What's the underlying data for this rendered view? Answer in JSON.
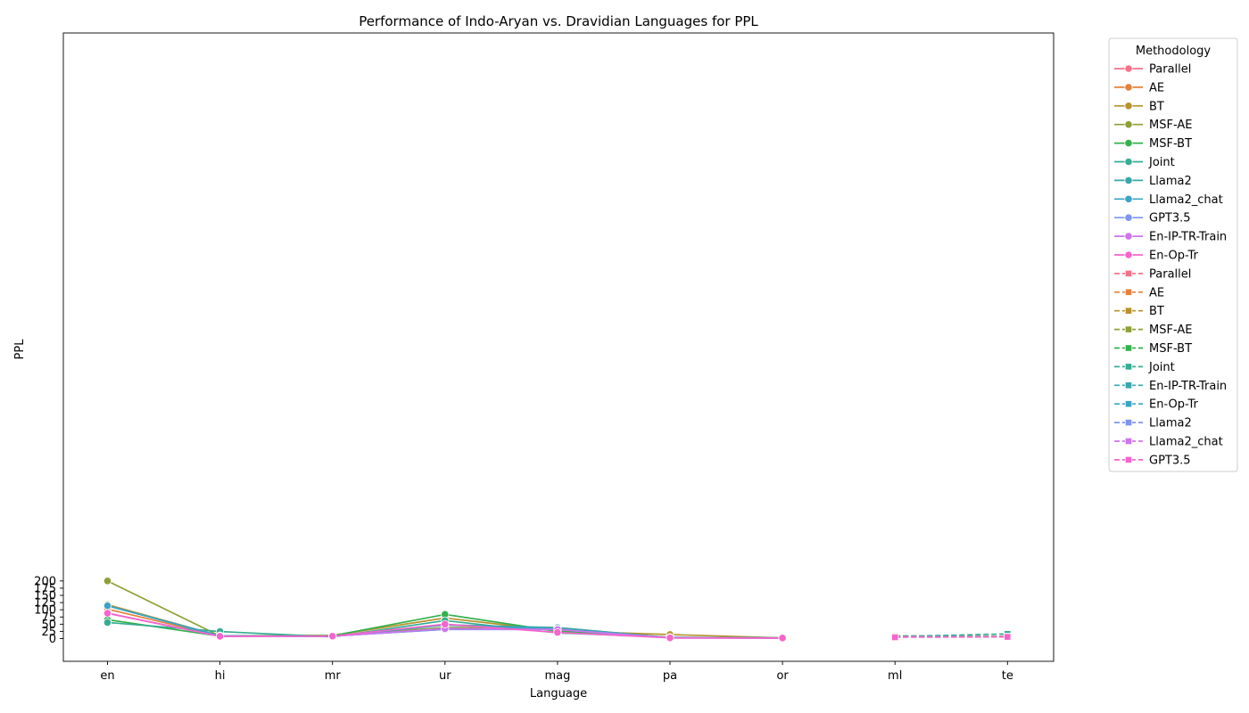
{
  "chart_data": {
    "type": "line",
    "title": "Performance of Indo-Aryan vs. Dravidian Languages for PPL",
    "xlabel": "Language",
    "ylabel": "PPL",
    "categories": [
      "en",
      "hi",
      "mr",
      "ur",
      "mag",
      "pa",
      "or",
      "ml",
      "te"
    ],
    "ylim": [
      -8,
      210
    ],
    "yticks": [
      0,
      25,
      50,
      75,
      100,
      125,
      150,
      175,
      200
    ],
    "grid": false,
    "legend": {
      "title": "Methodology",
      "placement": "outside-right"
    },
    "series": [
      {
        "name": "Parallel",
        "group": "Indo-Aryan",
        "color": "#f77189",
        "values": [
          88,
          8,
          9,
          32,
          32,
          3,
          2.2,
          null,
          null
        ]
      },
      {
        "name": "AE",
        "group": "Indo-Aryan",
        "color": "#e5823b",
        "values": [
          102,
          9,
          9,
          32.5,
          37,
          3,
          2.2,
          null,
          null
        ]
      },
      {
        "name": "BT",
        "group": "Indo-Aryan",
        "color": "#b8922c",
        "values": [
          118,
          9.5,
          11,
          71.5,
          26.5,
          14,
          2.5,
          null,
          null
        ]
      },
      {
        "name": "MSF-AE",
        "group": "Indo-Aryan",
        "color": "#8da036",
        "values": [
          200,
          9,
          10.5,
          38.5,
          38,
          3,
          2.2,
          null,
          null
        ]
      },
      {
        "name": "MSF-BT",
        "group": "Indo-Aryan",
        "color": "#33b14d",
        "values": [
          65.5,
          8.5,
          10,
          84,
          25,
          3,
          2.2,
          null,
          null
        ]
      },
      {
        "name": "Joint",
        "group": "Indo-Aryan",
        "color": "#36ac92",
        "values": [
          56,
          24.5,
          6,
          62.5,
          19.5,
          4.5,
          2.5,
          null,
          null
        ]
      },
      {
        "name": "Llama2",
        "group": "Indo-Aryan",
        "color": "#38a7ab",
        "values": [
          114,
          10,
          7,
          48,
          38,
          3,
          2.2,
          null,
          null
        ]
      },
      {
        "name": "Llama2_chat",
        "group": "Indo-Aryan",
        "color": "#3ba3c4",
        "values": [
          114,
          9.5,
          7.5,
          47,
          33.5,
          3,
          2.2,
          null,
          null
        ]
      },
      {
        "name": "GPT3.5",
        "group": "Indo-Aryan",
        "color": "#7e94f2",
        "values": [
          88,
          8,
          9,
          31.5,
          31.5,
          2.5,
          2,
          null,
          null
        ]
      },
      {
        "name": "En-IP-TR-Train",
        "group": "Indo-Aryan",
        "color": "#cd74f0",
        "values": [
          88,
          7.5,
          8.5,
          34.5,
          31.5,
          2.5,
          2,
          null,
          null
        ]
      },
      {
        "name": "En-Op-Tr",
        "group": "Indo-Aryan",
        "color": "#f565cc",
        "values": [
          88,
          8,
          8.5,
          50,
          21.5,
          2.5,
          2,
          null,
          null
        ]
      },
      {
        "name": "Parallel",
        "group": "Dravidian",
        "color": "#f77189",
        "values": [
          null,
          null,
          null,
          null,
          null,
          null,
          null,
          5.5,
          6
        ]
      },
      {
        "name": "AE",
        "group": "Dravidian",
        "color": "#e5823b",
        "values": [
          null,
          null,
          null,
          null,
          null,
          null,
          null,
          5.5,
          6.5
        ]
      },
      {
        "name": "BT",
        "group": "Dravidian",
        "color": "#b8922c",
        "values": [
          null,
          null,
          null,
          null,
          null,
          null,
          null,
          5.5,
          8
        ]
      },
      {
        "name": "MSF-AE",
        "group": "Dravidian",
        "color": "#8da036",
        "values": [
          null,
          null,
          null,
          null,
          null,
          null,
          null,
          10,
          6.5
        ]
      },
      {
        "name": "MSF-BT",
        "group": "Dravidian",
        "color": "#33b14d",
        "values": [
          null,
          null,
          null,
          null,
          null,
          null,
          null,
          5.5,
          6.5
        ]
      },
      {
        "name": "Joint",
        "group": "Dravidian",
        "color": "#36ac92",
        "values": [
          null,
          null,
          null,
          null,
          null,
          null,
          null,
          7,
          16
        ]
      },
      {
        "name": "En-IP-TR-Train",
        "group": "Dravidian",
        "color": "#38a7ab",
        "values": [
          null,
          null,
          null,
          null,
          null,
          null,
          null,
          5.5,
          6.5
        ]
      },
      {
        "name": "En-Op-Tr",
        "group": "Dravidian",
        "color": "#3ba3c4",
        "values": [
          null,
          null,
          null,
          null,
          null,
          null,
          null,
          5.5,
          6.5
        ]
      },
      {
        "name": "Llama2",
        "group": "Dravidian",
        "color": "#7e94f2",
        "values": [
          null,
          null,
          null,
          null,
          null,
          null,
          null,
          5.5,
          6.5
        ]
      },
      {
        "name": "Llama2_chat",
        "group": "Dravidian",
        "color": "#cd74f0",
        "values": [
          null,
          null,
          null,
          null,
          null,
          null,
          null,
          6,
          6
        ]
      },
      {
        "name": "GPT3.5",
        "group": "Dravidian",
        "color": "#f565cc",
        "values": [
          null,
          null,
          null,
          null,
          null,
          null,
          null,
          4.5,
          6
        ]
      }
    ]
  }
}
